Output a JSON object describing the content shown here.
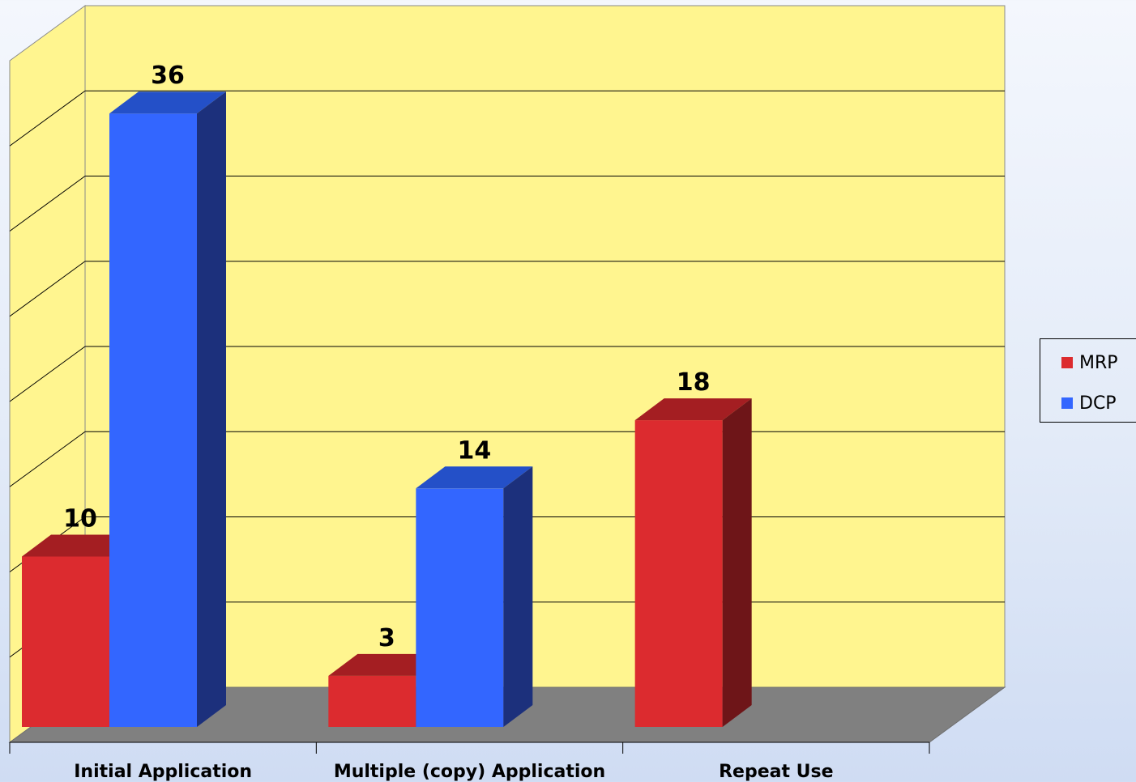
{
  "chart_data": {
    "type": "bar",
    "categories": [
      "Initial Application",
      "Multiple (copy) Application",
      "Repeat Use"
    ],
    "series": [
      {
        "name": "MRP",
        "values": [
          10,
          3,
          18
        ],
        "color": "#dc2b2f",
        "top_color": "#a41e22",
        "side_color": "#6e1518"
      },
      {
        "name": "DCP",
        "values": [
          36,
          14,
          null
        ],
        "color": "#3366ff",
        "top_color": "#2450c8",
        "side_color": "#1c307c"
      }
    ],
    "ylim": [
      0,
      40
    ],
    "grid": true,
    "legend_position": "right",
    "wall_color": "#fff58f",
    "floor_color": "#808080"
  }
}
